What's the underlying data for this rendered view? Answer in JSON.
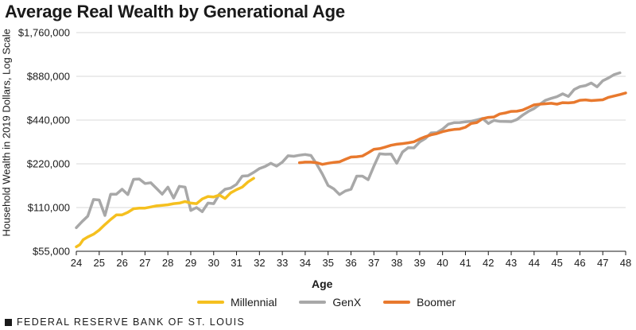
{
  "chart_data": {
    "type": "line",
    "title": "Average Real Wealth by Generational Age",
    "ylabel": "Household Wealth in 2019 Dollars, Log Scale",
    "xlabel": "Age",
    "yscale": "log",
    "xlim": [
      24,
      48
    ],
    "ylim": [
      55000,
      1760000
    ],
    "yticks": [
      55000,
      110000,
      220000,
      440000,
      880000,
      1760000
    ],
    "ytick_labels": [
      "$55,000",
      "$110,000",
      "$220,000",
      "$440,000",
      "$880,000",
      "$1,760,000"
    ],
    "xticks": [
      24,
      25,
      26,
      27,
      28,
      29,
      30,
      31,
      32,
      33,
      34,
      35,
      36,
      37,
      38,
      39,
      40,
      41,
      42,
      43,
      44,
      45,
      46,
      47,
      48
    ],
    "grid": "horizontal",
    "legend_position": "bottom",
    "series": [
      {
        "name": "Millennial",
        "color": "#F5C01F",
        "x": [
          24.0,
          24.15,
          24.3,
          24.5,
          24.75,
          25.0,
          25.25,
          25.5,
          25.75,
          26.0,
          26.25,
          26.5,
          26.75,
          27.0,
          27.25,
          27.5,
          27.75,
          28.0,
          28.25,
          28.5,
          28.75,
          29.0,
          29.25,
          29.5,
          29.75,
          30.0,
          30.25,
          30.5,
          30.75,
          31.0,
          31.25,
          31.5,
          31.75
        ],
        "y": [
          59000,
          61000,
          66000,
          69000,
          72000,
          77000,
          84000,
          91000,
          98000,
          98000,
          102000,
          108000,
          109000,
          109000,
          111000,
          113000,
          114000,
          115000,
          117000,
          118000,
          121000,
          118000,
          117000,
          126000,
          131000,
          130000,
          134000,
          127000,
          139000,
          146000,
          152000,
          165000,
          175000
        ]
      },
      {
        "name": "GenX",
        "color": "#A8A8A8",
        "x": [
          24.0,
          24.25,
          24.5,
          24.75,
          25.0,
          25.25,
          25.5,
          25.75,
          26.0,
          26.25,
          26.5,
          26.75,
          27.0,
          27.25,
          27.5,
          27.75,
          28.0,
          28.25,
          28.5,
          28.75,
          29.0,
          29.25,
          29.5,
          29.75,
          30.0,
          30.25,
          30.5,
          30.75,
          31.0,
          31.25,
          31.5,
          31.75,
          32.0,
          32.25,
          32.5,
          32.75,
          33.0,
          33.25,
          33.5,
          33.75,
          34.0,
          34.25,
          34.5,
          34.75,
          35.0,
          35.25,
          35.5,
          35.75,
          36.0,
          36.25,
          36.5,
          36.75,
          37.0,
          37.25,
          37.5,
          37.75,
          38.0,
          38.25,
          38.5,
          38.75,
          39.0,
          39.25,
          39.5,
          39.75,
          40.0,
          40.25,
          40.5,
          40.75,
          41.0,
          41.25,
          41.5,
          41.75,
          42.0,
          42.25,
          42.5,
          42.75,
          43.0,
          43.25,
          43.5,
          43.75,
          44.0,
          44.25,
          44.5,
          44.75,
          45.0,
          45.25,
          45.5,
          45.75,
          46.0,
          46.25,
          46.5,
          46.75,
          47.0,
          47.25,
          47.5,
          47.75
        ],
        "y": [
          80000,
          88000,
          96000,
          125000,
          124000,
          97000,
          136000,
          136000,
          147000,
          135000,
          172000,
          173000,
          161000,
          163000,
          149000,
          136000,
          152000,
          128000,
          154000,
          152000,
          105000,
          110000,
          103000,
          118000,
          117000,
          136000,
          147000,
          150000,
          159000,
          181000,
          182000,
          192000,
          204000,
          211000,
          222000,
          212000,
          226000,
          250000,
          248000,
          252000,
          255000,
          251000,
          219000,
          187000,
          156000,
          148000,
          135000,
          143000,
          147000,
          181000,
          181000,
          171000,
          212000,
          258000,
          256000,
          257000,
          222000,
          265000,
          284000,
          283000,
          311000,
          329000,
          359000,
          361000,
          381000,
          412000,
          422000,
          423000,
          428000,
          432000,
          441000,
          451000,
          417000,
          438000,
          431000,
          430000,
          429000,
          444000,
          476000,
          505000,
          528000,
          565000,
          602000,
          621000,
          637000,
          667000,
          640000,
          714000,
          747000,
          760000,
          792000,
          745000,
          820000,
          858000,
          905000,
          931000
        ],
        "stroke_width": 3.5
      },
      {
        "name": "Boomer",
        "color": "#E8792E",
        "x": [
          33.75,
          34.0,
          34.25,
          34.5,
          34.75,
          35.0,
          35.25,
          35.5,
          35.75,
          36.0,
          36.25,
          36.5,
          36.75,
          37.0,
          37.25,
          37.5,
          37.75,
          38.0,
          38.25,
          38.5,
          38.75,
          39.0,
          39.25,
          39.5,
          39.75,
          40.0,
          40.25,
          40.5,
          40.75,
          41.0,
          41.25,
          41.5,
          41.75,
          42.0,
          42.25,
          42.5,
          42.75,
          43.0,
          43.25,
          43.5,
          43.75,
          44.0,
          44.25,
          44.5,
          44.75,
          45.0,
          45.25,
          45.5,
          45.75,
          46.0,
          46.25,
          46.5,
          46.75,
          47.0,
          47.25,
          47.5,
          47.75,
          48.0
        ],
        "y": [
          224000,
          226000,
          226000,
          224000,
          218000,
          222000,
          225000,
          227000,
          236000,
          245000,
          246000,
          249000,
          262000,
          277000,
          280000,
          287000,
          295000,
          300000,
          303000,
          307000,
          312000,
          326000,
          338000,
          348000,
          355000,
          366000,
          374000,
          379000,
          382000,
          393000,
          417000,
          423000,
          450000,
          459000,
          462000,
          485000,
          493000,
          505000,
          506000,
          516000,
          537000,
          560000,
          566000,
          570000,
          574000,
          566000,
          580000,
          578000,
          583000,
          602000,
          606000,
          599000,
          603000,
          607000,
          631000,
          645000,
          659000,
          676000
        ],
        "stroke_width": 3.5
      }
    ]
  },
  "footer": {
    "text": "FEDERAL RESERVE BANK OF ST. LOUIS"
  }
}
